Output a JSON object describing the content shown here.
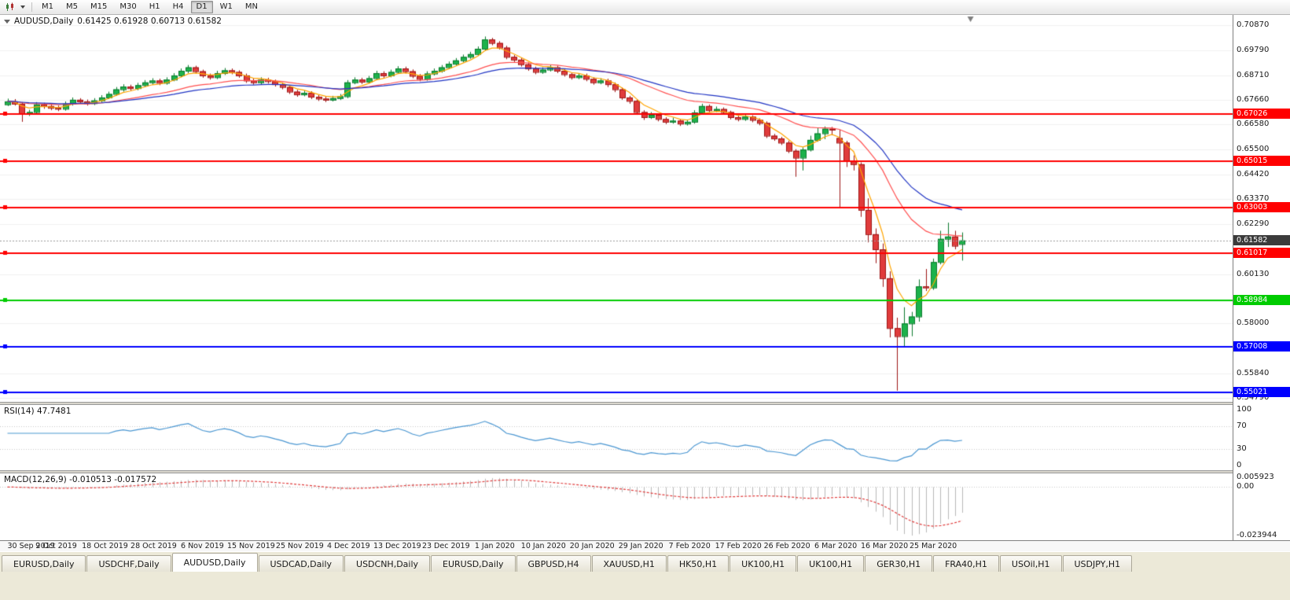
{
  "toolbar": {
    "timeframes": [
      "M1",
      "M5",
      "M15",
      "M30",
      "H1",
      "H4",
      "D1",
      "W1",
      "MN"
    ],
    "active_timeframe": "D1"
  },
  "chart": {
    "symbol_period": "AUDUSD,Daily",
    "ohlc": "0.61425 0.61928 0.60713 0.61582"
  },
  "price_axis": {
    "range": {
      "max": 0.7131,
      "min": 0.5462
    },
    "ticks": [
      {
        "label": "0.70870",
        "value": 0.7087
      },
      {
        "label": "0.69790",
        "value": 0.6979
      },
      {
        "label": "0.68710",
        "value": 0.6871
      },
      {
        "label": "0.67660",
        "value": 0.6766
      },
      {
        "label": "0.66580",
        "value": 0.6658
      },
      {
        "label": "0.65500",
        "value": 0.655
      },
      {
        "label": "0.64420",
        "value": 0.6442
      },
      {
        "label": "0.63370",
        "value": 0.6337
      },
      {
        "label": "0.62290",
        "value": 0.6229
      },
      {
        "label": "0.60130",
        "value": 0.6013
      },
      {
        "label": "0.58000",
        "value": 0.58
      },
      {
        "label": "0.55840",
        "value": 0.5584
      },
      {
        "label": "0.54790",
        "value": 0.5479
      }
    ],
    "current_price_badge": {
      "label": "0.61582",
      "value": 0.61582,
      "bg": "#3b3b3b",
      "fg": "#ffffff"
    }
  },
  "hlines": [
    {
      "label": "0.67026",
      "value": 0.67026,
      "color": "#ff0000"
    },
    {
      "label": "0.65015",
      "value": 0.65015,
      "color": "#ff0000"
    },
    {
      "label": "0.63003",
      "value": 0.63003,
      "color": "#ff0000"
    },
    {
      "label": "0.61017",
      "value": 0.61017,
      "color": "#ff0000"
    },
    {
      "label": "0.58984",
      "value": 0.58984,
      "color": "#00cc00"
    },
    {
      "label": "0.57008",
      "value": 0.57008,
      "color": "#0000ff"
    },
    {
      "label": "0.55021",
      "value": 0.55021,
      "color": "#0000ff"
    }
  ],
  "rsi_panel": {
    "label": "RSI(14) 47.7481",
    "period": 14,
    "current": 47.7481,
    "line_color": "#4b97d2",
    "levels": [
      {
        "label": "100",
        "value": 100
      },
      {
        "label": "70",
        "value": 70
      },
      {
        "label": "30",
        "value": 30
      },
      {
        "label": "0",
        "value": 0
      }
    ]
  },
  "macd_panel": {
    "label": "MACD(12,26,9) -0.010513 -0.017572",
    "fast": 12,
    "slow": 26,
    "signal": 9,
    "current_main": -0.010513,
    "current_signal": -0.017572,
    "histogram_color": "#b9b9b9",
    "signal_color": "#e03c3c",
    "axis": [
      {
        "label": "0.005923",
        "value": 0.005923
      },
      {
        "label": "0.00",
        "value": 0
      },
      {
        "label": "-0.023944",
        "value": -0.023944
      }
    ]
  },
  "time_axis": {
    "labels": [
      "30 Sep 2019",
      "9 Oct 2019",
      "18 Oct 2019",
      "28 Oct 2019",
      "6 Nov 2019",
      "15 Nov 2019",
      "25 Nov 2019",
      "4 Dec 2019",
      "13 Dec 2019",
      "23 Dec 2019",
      "1 Jan 2020",
      "10 Jan 2020",
      "20 Jan 2020",
      "29 Jan 2020",
      "7 Feb 2020",
      "17 Feb 2020",
      "26 Feb 2020",
      "6 Mar 2020",
      "16 Mar 2020",
      "25 Mar 2020"
    ]
  },
  "tabs": [
    {
      "label": "EURUSD,Daily",
      "active": false
    },
    {
      "label": "USDCHF,Daily",
      "active": false
    },
    {
      "label": "AUDUSD,Daily",
      "active": true
    },
    {
      "label": "USDCAD,Daily",
      "active": false
    },
    {
      "label": "USDCNH,Daily",
      "active": false
    },
    {
      "label": "EURUSD,Daily",
      "active": false
    },
    {
      "label": "GBPUSD,H4",
      "active": false
    },
    {
      "label": "XAUUSD,H1",
      "active": false
    },
    {
      "label": "HK50,H1",
      "active": false
    },
    {
      "label": "UK100,H1",
      "active": false
    },
    {
      "label": "UK100,H1",
      "active": false
    },
    {
      "label": "GER30,H1",
      "active": false
    },
    {
      "label": "FRA40,H1",
      "active": false
    },
    {
      "label": "USOil,H1",
      "active": false
    },
    {
      "label": "USDJPY,H1",
      "active": false
    }
  ],
  "chart_data": {
    "type": "candlestick",
    "title": "AUDUSD,Daily",
    "symbol": "AUDUSD",
    "timeframe": "Daily",
    "up_color": "#1cb24b",
    "down_color": "#e03c3c",
    "up_border": "#0c7a2e",
    "down_border": "#9e1414",
    "ylim": [
      0.5462,
      0.7131
    ],
    "ma": [
      {
        "type": "ema",
        "period": 5,
        "color": "#ffa500"
      },
      {
        "type": "ema",
        "period": 21,
        "color": "#ff5050"
      },
      {
        "type": "ema",
        "period": 34,
        "color": "#2135c4"
      }
    ],
    "candles": [
      [
        0.6745,
        0.677,
        0.6738,
        0.6758
      ],
      [
        0.6758,
        0.6768,
        0.674,
        0.6748
      ],
      [
        0.6748,
        0.6755,
        0.667,
        0.6705
      ],
      [
        0.6705,
        0.6722,
        0.6695,
        0.6712
      ],
      [
        0.6712,
        0.6755,
        0.6705,
        0.6745
      ],
      [
        0.6745,
        0.6752,
        0.6726,
        0.6738
      ],
      [
        0.6738,
        0.6748,
        0.672,
        0.673
      ],
      [
        0.673,
        0.674,
        0.6716,
        0.6726
      ],
      [
        0.6726,
        0.6758,
        0.6718,
        0.6748
      ],
      [
        0.6748,
        0.6775,
        0.674,
        0.6765
      ],
      [
        0.6765,
        0.6772,
        0.6748,
        0.6758
      ],
      [
        0.6758,
        0.6766,
        0.674,
        0.675
      ],
      [
        0.675,
        0.6772,
        0.6742,
        0.6762
      ],
      [
        0.6762,
        0.6785,
        0.6754,
        0.6775
      ],
      [
        0.6775,
        0.68,
        0.6768,
        0.679
      ],
      [
        0.679,
        0.682,
        0.6782,
        0.681
      ],
      [
        0.681,
        0.6832,
        0.68,
        0.6822
      ],
      [
        0.6822,
        0.683,
        0.6805,
        0.6815
      ],
      [
        0.6815,
        0.6838,
        0.6806,
        0.6828
      ],
      [
        0.6828,
        0.685,
        0.682,
        0.684
      ],
      [
        0.684,
        0.6858,
        0.683,
        0.6848
      ],
      [
        0.6848,
        0.6856,
        0.6828,
        0.6838
      ],
      [
        0.6838,
        0.6862,
        0.683,
        0.6852
      ],
      [
        0.6852,
        0.688,
        0.6845,
        0.687
      ],
      [
        0.687,
        0.69,
        0.6862,
        0.689
      ],
      [
        0.689,
        0.6915,
        0.688,
        0.6905
      ],
      [
        0.6905,
        0.6912,
        0.6878,
        0.6888
      ],
      [
        0.6888,
        0.6895,
        0.686,
        0.687
      ],
      [
        0.687,
        0.6878,
        0.6852,
        0.6862
      ],
      [
        0.6862,
        0.689,
        0.6854,
        0.688
      ],
      [
        0.688,
        0.6902,
        0.6872,
        0.6892
      ],
      [
        0.6892,
        0.69,
        0.6875,
        0.6885
      ],
      [
        0.6885,
        0.6892,
        0.686,
        0.687
      ],
      [
        0.687,
        0.6878,
        0.6838,
        0.6848
      ],
      [
        0.6848,
        0.6856,
        0.683,
        0.684
      ],
      [
        0.684,
        0.6862,
        0.6832,
        0.6852
      ],
      [
        0.6852,
        0.686,
        0.6835,
        0.6845
      ],
      [
        0.6845,
        0.6852,
        0.6822,
        0.6832
      ],
      [
        0.6832,
        0.684,
        0.681,
        0.682
      ],
      [
        0.682,
        0.6828,
        0.679,
        0.68
      ],
      [
        0.68,
        0.6808,
        0.6778,
        0.6788
      ],
      [
        0.6788,
        0.6805,
        0.678,
        0.6795
      ],
      [
        0.6795,
        0.6802,
        0.6768,
        0.6778
      ],
      [
        0.6778,
        0.6786,
        0.676,
        0.677
      ],
      [
        0.677,
        0.6778,
        0.6755,
        0.6765
      ],
      [
        0.6765,
        0.6782,
        0.6758,
        0.6772
      ],
      [
        0.6772,
        0.679,
        0.6764,
        0.678
      ],
      [
        0.678,
        0.685,
        0.6772,
        0.684
      ],
      [
        0.684,
        0.6862,
        0.6832,
        0.6852
      ],
      [
        0.6852,
        0.686,
        0.6833,
        0.6843
      ],
      [
        0.6843,
        0.6868,
        0.6835,
        0.6858
      ],
      [
        0.6858,
        0.689,
        0.685,
        0.688
      ],
      [
        0.688,
        0.6888,
        0.686,
        0.687
      ],
      [
        0.687,
        0.6895,
        0.6862,
        0.6885
      ],
      [
        0.6885,
        0.691,
        0.6877,
        0.69
      ],
      [
        0.69,
        0.6908,
        0.6878,
        0.6888
      ],
      [
        0.6888,
        0.6896,
        0.6858,
        0.6868
      ],
      [
        0.6868,
        0.6876,
        0.6845,
        0.6855
      ],
      [
        0.6855,
        0.6888,
        0.6847,
        0.6878
      ],
      [
        0.6878,
        0.69,
        0.687,
        0.689
      ],
      [
        0.689,
        0.6915,
        0.6882,
        0.6905
      ],
      [
        0.6905,
        0.693,
        0.6897,
        0.692
      ],
      [
        0.692,
        0.6945,
        0.6912,
        0.6935
      ],
      [
        0.6935,
        0.696,
        0.6927,
        0.695
      ],
      [
        0.695,
        0.6972,
        0.6942,
        0.6962
      ],
      [
        0.6962,
        0.6995,
        0.6954,
        0.6985
      ],
      [
        0.6985,
        0.7038,
        0.6977,
        0.7025
      ],
      [
        0.7025,
        0.7032,
        0.7,
        0.701
      ],
      [
        0.701,
        0.7018,
        0.6982,
        0.699
      ],
      [
        0.699,
        0.6998,
        0.694,
        0.695
      ],
      [
        0.695,
        0.6958,
        0.6928,
        0.6938
      ],
      [
        0.6938,
        0.6946,
        0.6908,
        0.6918
      ],
      [
        0.6918,
        0.6926,
        0.689,
        0.69
      ],
      [
        0.69,
        0.6908,
        0.6875,
        0.6885
      ],
      [
        0.6885,
        0.6905,
        0.6877,
        0.6895
      ],
      [
        0.6895,
        0.6915,
        0.6887,
        0.6905
      ],
      [
        0.6905,
        0.6912,
        0.688,
        0.689
      ],
      [
        0.689,
        0.6898,
        0.6865,
        0.6875
      ],
      [
        0.6875,
        0.6882,
        0.6852,
        0.6862
      ],
      [
        0.6862,
        0.688,
        0.6854,
        0.687
      ],
      [
        0.687,
        0.6878,
        0.6845,
        0.6855
      ],
      [
        0.6855,
        0.6862,
        0.683,
        0.684
      ],
      [
        0.684,
        0.6858,
        0.6832,
        0.6848
      ],
      [
        0.6848,
        0.6856,
        0.682,
        0.6832
      ],
      [
        0.6832,
        0.684,
        0.6798,
        0.681
      ],
      [
        0.681,
        0.6818,
        0.6765,
        0.6775
      ],
      [
        0.6775,
        0.6782,
        0.6748,
        0.676
      ],
      [
        0.676,
        0.6768,
        0.67,
        0.6712
      ],
      [
        0.6712,
        0.672,
        0.6678,
        0.669
      ],
      [
        0.669,
        0.6712,
        0.6682,
        0.67
      ],
      [
        0.67,
        0.6706,
        0.6672,
        0.6682
      ],
      [
        0.6682,
        0.669,
        0.666,
        0.667
      ],
      [
        0.667,
        0.6688,
        0.6662,
        0.6675
      ],
      [
        0.6675,
        0.6682,
        0.6652,
        0.6662
      ],
      [
        0.6662,
        0.668,
        0.6654,
        0.667
      ],
      [
        0.667,
        0.672,
        0.6662,
        0.671
      ],
      [
        0.671,
        0.6748,
        0.6702,
        0.6738
      ],
      [
        0.6738,
        0.6745,
        0.671,
        0.672
      ],
      [
        0.672,
        0.6736,
        0.6712,
        0.6725
      ],
      [
        0.6725,
        0.6732,
        0.6702,
        0.6712
      ],
      [
        0.6712,
        0.6718,
        0.668,
        0.669
      ],
      [
        0.669,
        0.6698,
        0.6672,
        0.6682
      ],
      [
        0.6682,
        0.67,
        0.6674,
        0.6692
      ],
      [
        0.6692,
        0.6698,
        0.6668,
        0.6678
      ],
      [
        0.6678,
        0.6685,
        0.6655,
        0.6665
      ],
      [
        0.6665,
        0.6672,
        0.66,
        0.661
      ],
      [
        0.661,
        0.6618,
        0.6588,
        0.6598
      ],
      [
        0.6598,
        0.6605,
        0.657,
        0.658
      ],
      [
        0.658,
        0.6588,
        0.6535,
        0.6545
      ],
      [
        0.6545,
        0.6552,
        0.6433,
        0.6515
      ],
      [
        0.6515,
        0.656,
        0.646,
        0.655
      ],
      [
        0.655,
        0.661,
        0.6542,
        0.6592
      ],
      [
        0.6592,
        0.6645,
        0.6584,
        0.662
      ],
      [
        0.662,
        0.665,
        0.6595,
        0.664
      ],
      [
        0.664,
        0.6648,
        0.6612,
        0.6636
      ],
      [
        0.66,
        0.6636,
        0.63,
        0.658
      ],
      [
        0.658,
        0.6588,
        0.6475,
        0.65
      ],
      [
        0.65,
        0.6525,
        0.646,
        0.6487
      ],
      [
        0.6487,
        0.6495,
        0.626,
        0.629
      ],
      [
        0.629,
        0.634,
        0.615,
        0.6185
      ],
      [
        0.6185,
        0.621,
        0.606,
        0.612
      ],
      [
        0.612,
        0.6145,
        0.5958,
        0.5995
      ],
      [
        0.5995,
        0.6025,
        0.574,
        0.578
      ],
      [
        0.578,
        0.5825,
        0.551,
        0.5745
      ],
      [
        0.5745,
        0.587,
        0.57,
        0.58
      ],
      [
        0.58,
        0.585,
        0.5745,
        0.583
      ],
      [
        0.583,
        0.599,
        0.5808,
        0.596
      ],
      [
        0.596,
        0.6035,
        0.594,
        0.5955
      ],
      [
        0.5955,
        0.608,
        0.5945,
        0.6065
      ],
      [
        0.6065,
        0.62,
        0.6055,
        0.6165
      ],
      [
        0.6165,
        0.6235,
        0.613,
        0.6175
      ],
      [
        0.6175,
        0.62,
        0.612,
        0.6135
      ],
      [
        0.61425,
        0.61928,
        0.60713,
        0.61582
      ]
    ],
    "indicators": [
      {
        "name": "RSI",
        "period": 14,
        "current": 47.7481
      },
      {
        "name": "MACD",
        "fast": 12,
        "slow": 26,
        "signal": 9,
        "current_main": -0.010513,
        "current_signal": -0.017572
      }
    ]
  }
}
